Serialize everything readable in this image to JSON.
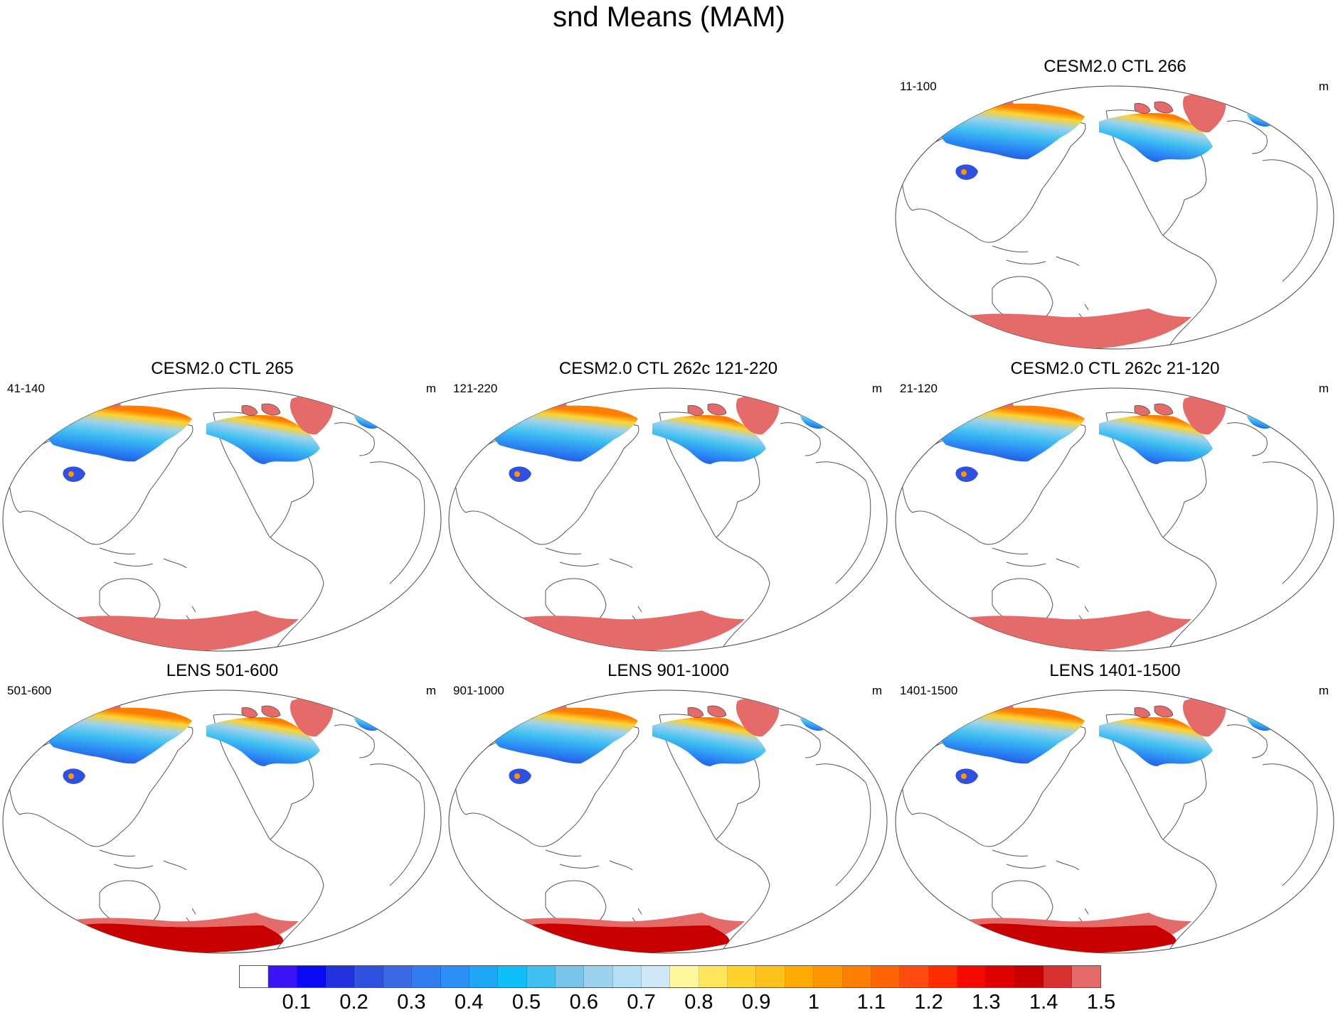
{
  "title": "snd Means (MAM)",
  "units": "m",
  "panels": [
    {
      "id": "cesm-266",
      "title": "CESM2.0 CTL 266",
      "years": "11-100",
      "variant": "cesm"
    },
    {
      "id": "cesm-265",
      "title": "CESM2.0 CTL 265",
      "years": "41-140",
      "variant": "cesm"
    },
    {
      "id": "cesm-262c-121",
      "title": "CESM2.0 CTL 262c 121-220",
      "years": "121-220",
      "variant": "cesm"
    },
    {
      "id": "cesm-262c-21",
      "title": "CESM2.0 CTL 262c 21-120",
      "years": "21-120",
      "variant": "cesm"
    },
    {
      "id": "lens-501",
      "title": "LENS 501-600",
      "years": "501-600",
      "variant": "lens"
    },
    {
      "id": "lens-901",
      "title": "LENS 901-1000",
      "years": "901-1000",
      "variant": "lens"
    },
    {
      "id": "lens-1401",
      "title": "LENS 1401-1500",
      "years": "1401-1500",
      "variant": "lens"
    }
  ],
  "colorbar": {
    "colors": [
      "#ffffff",
      "#3a14f5",
      "#0a0af5",
      "#2233dd",
      "#3050e0",
      "#3a6ae6",
      "#2f7df0",
      "#2b8ff5",
      "#1ea6f7",
      "#0ec0f5",
      "#40c0f0",
      "#78c4ea",
      "#9cd2ee",
      "#b6e0f5",
      "#cfe8f7",
      "#fff79a",
      "#ffe65a",
      "#ffd22d",
      "#ffc21a",
      "#ffaa00",
      "#ff9600",
      "#ff7d00",
      "#ff6400",
      "#ff4b10",
      "#ff2c00",
      "#f50a00",
      "#e00000",
      "#c80000",
      "#d83030",
      "#e56a6a"
    ],
    "labels": [
      "0.1",
      "0.2",
      "0.3",
      "0.4",
      "0.5",
      "0.6",
      "0.7",
      "0.8",
      "0.9",
      "1",
      "1.1",
      "1.2",
      "1.3",
      "1.4",
      "1.5"
    ]
  }
}
